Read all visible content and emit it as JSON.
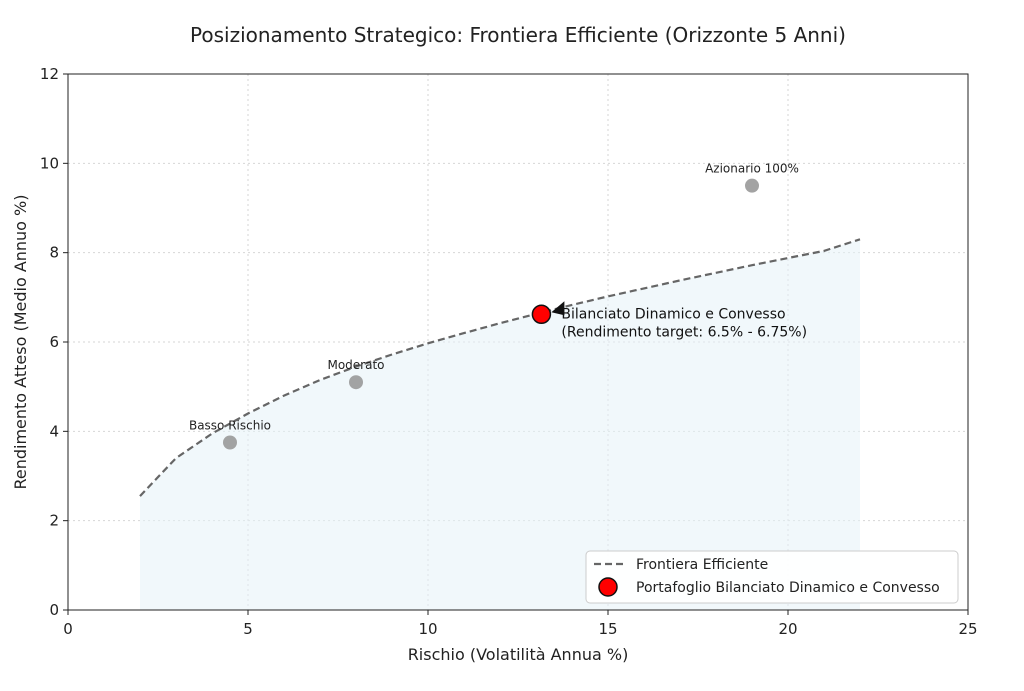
{
  "chart_data": {
    "type": "scatter",
    "title": "Posizionamento Strategico: Frontiera Efficiente (Orizzonte 5 Anni)",
    "xlabel": "Rischio (Volatilità Annua %)",
    "ylabel": "Rendimento Atteso (Medio Annuo %)",
    "xlim": [
      0,
      25
    ],
    "ylim": [
      0,
      12
    ],
    "xticks": [
      0,
      5,
      10,
      15,
      20,
      25
    ],
    "yticks": [
      0,
      2,
      4,
      6,
      8,
      10,
      12
    ],
    "grid": true,
    "frontier": {
      "name": "Frontiera Efficiente",
      "x_range": [
        2,
        22
      ],
      "x": [
        2,
        3,
        4,
        5,
        6,
        7,
        8,
        9,
        10,
        11,
        12,
        13,
        14,
        15,
        16,
        17,
        18,
        19,
        20,
        21,
        22
      ],
      "y": [
        2.55,
        3.4,
        3.95,
        4.4,
        4.8,
        5.15,
        5.45,
        5.72,
        5.97,
        6.2,
        6.42,
        6.63,
        6.83,
        7.02,
        7.2,
        7.38,
        7.55,
        7.72,
        7.88,
        8.04,
        8.3
      ],
      "color": "#666666"
    },
    "reference_portfolios": [
      {
        "label": "Basso Rischio",
        "x": 4.5,
        "y": 3.75
      },
      {
        "label": "Moderato",
        "x": 8.0,
        "y": 5.1
      },
      {
        "label": "Azionario 100%",
        "x": 19.0,
        "y": 9.5
      }
    ],
    "reference_color": "#999999",
    "target": {
      "name": "Portafoglio Bilanciato Dinamico e Convesso",
      "x": 13.15,
      "y": 6.62,
      "label_line1": "Bilanciato Dinamico e Convesso",
      "label_line2": "(Rendimento target: 6.5% - 6.75%)",
      "color": "#ff0000"
    },
    "fill_color": "#e6f3f7",
    "legend": {
      "position": "lower-right",
      "entries": [
        "Frontiera Efficiente",
        "Portafoglio Bilanciato Dinamico e Convesso"
      ]
    }
  }
}
